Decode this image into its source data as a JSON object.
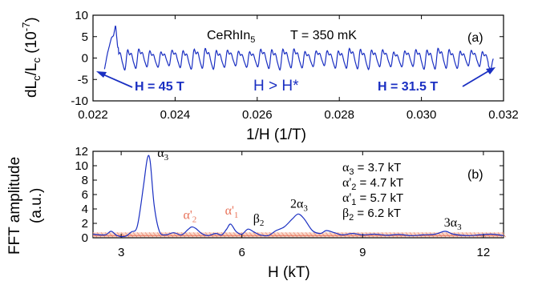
{
  "chart_data": [
    {
      "panel": "(a)",
      "type": "line",
      "xlabel": "1/H (1/T)",
      "ylabel": "dL_c/L_c (10^-7)",
      "xlim": [
        0.022,
        0.032
      ],
      "ylim": [
        -10,
        10
      ],
      "x_ticks": [
        "0.022",
        "0.024",
        "0.026",
        "0.028",
        "0.030",
        "0.032"
      ],
      "y_ticks": [
        "10",
        "5",
        "0",
        "-5",
        "-10"
      ],
      "annotations": {
        "sample": "CeRhIn",
        "sample_sub": "5",
        "temperature": "T = 350 mK",
        "panel_label": "(a)",
        "h_high": "H = 45 T",
        "h_low": "H = 31.5 T",
        "regime": "H > H*"
      },
      "series": [
        {
          "color": "#1a2fc2",
          "x_range": [
            0.02228,
            0.03175
          ],
          "oscillation_period_invT": 0.00027,
          "amplitude": 2.0,
          "values": [
            [
              0.02228,
              -2.6
            ],
            [
              0.02235,
              1.0
            ],
            [
              0.02245,
              4.8
            ],
            [
              0.0225,
              5.2
            ],
            [
              0.02255,
              7.8
            ],
            [
              0.0226,
              2.5
            ],
            [
              0.0228,
              1.5
            ],
            [
              0.023,
              -1.8
            ],
            [
              0.0233,
              2.0
            ],
            [
              0.0236,
              -1.5
            ],
            [
              0.024,
              1.8
            ],
            [
              0.0245,
              -1.6
            ],
            [
              0.025,
              2.0
            ],
            [
              0.0255,
              -1.7
            ],
            [
              0.026,
              1.9
            ],
            [
              0.0265,
              -1.5
            ],
            [
              0.027,
              2.1
            ],
            [
              0.0275,
              -1.6
            ],
            [
              0.028,
              1.8
            ],
            [
              0.0285,
              -1.7
            ],
            [
              0.029,
              2.0
            ],
            [
              0.0295,
              -1.6
            ],
            [
              0.03,
              1.9
            ],
            [
              0.0305,
              -1.8
            ],
            [
              0.031,
              2.0
            ],
            [
              0.0315,
              -1.5
            ],
            [
              0.03175,
              -1.9
            ]
          ]
        }
      ]
    },
    {
      "panel": "(b)",
      "type": "line",
      "xlabel": "H (kT)",
      "ylabel": "FFT amplitude (a.u.)",
      "xlim": [
        2.3,
        12.5
      ],
      "ylim": [
        0,
        12
      ],
      "x_ticks": [
        "3",
        "6",
        "9",
        "12"
      ],
      "y_ticks": [
        "12",
        "10",
        "8",
        "6",
        "4",
        "2",
        "0"
      ],
      "panel_label": "(b)",
      "peaks": [
        {
          "label": "α",
          "sub": "3",
          "x": 3.7,
          "y": 11.0,
          "color": "#000000"
        },
        {
          "label": "α'",
          "sub": "2",
          "x": 4.7,
          "y": 1.5,
          "color": "#e8735a"
        },
        {
          "label": "α'",
          "sub": "1",
          "x": 5.7,
          "y": 1.9,
          "color": "#e8735a"
        },
        {
          "label": "β",
          "sub": "2",
          "x": 6.2,
          "y": 1.2,
          "color": "#000000"
        },
        {
          "label": "2α",
          "sub": "3",
          "x": 7.4,
          "y": 3.3,
          "color": "#000000"
        },
        {
          "label": "3α",
          "sub": "3",
          "x": 11.1,
          "y": 0.9,
          "color": "#000000"
        }
      ],
      "frequency_list": [
        {
          "label": "α",
          "sub": "3",
          "value": " = 3.7 kT"
        },
        {
          "label": "α'",
          "sub": "2",
          "value": " = 4.7 kT"
        },
        {
          "label": "α'",
          "sub": "1",
          "value": " = 5.7 kT"
        },
        {
          "label": "β",
          "sub": "2",
          "value": " = 6.2 kT"
        }
      ],
      "series": [
        {
          "color": "#1a2fc2",
          "values": [
            [
              2.3,
              0.5
            ],
            [
              2.6,
              0.4
            ],
            [
              2.75,
              0.9
            ],
            [
              2.9,
              0.3
            ],
            [
              3.1,
              0.2
            ],
            [
              3.25,
              0.8
            ],
            [
              3.4,
              1.6
            ],
            [
              3.55,
              7.0
            ],
            [
              3.65,
              11.0
            ],
            [
              3.72,
              10.6
            ],
            [
              3.82,
              4.5
            ],
            [
              3.95,
              0.9
            ],
            [
              4.1,
              0.4
            ],
            [
              4.3,
              0.7
            ],
            [
              4.5,
              0.4
            ],
            [
              4.65,
              1.1
            ],
            [
              4.75,
              1.5
            ],
            [
              4.85,
              1.3
            ],
            [
              5.0,
              0.6
            ],
            [
              5.15,
              0.3
            ],
            [
              5.35,
              0.6
            ],
            [
              5.5,
              0.4
            ],
            [
              5.62,
              1.2
            ],
            [
              5.72,
              1.9
            ],
            [
              5.85,
              0.9
            ],
            [
              6.0,
              0.5
            ],
            [
              6.15,
              1.2
            ],
            [
              6.3,
              0.8
            ],
            [
              6.45,
              0.4
            ],
            [
              6.65,
              0.3
            ],
            [
              6.85,
              1.0
            ],
            [
              7.05,
              1.5
            ],
            [
              7.25,
              2.6
            ],
            [
              7.4,
              3.3
            ],
            [
              7.55,
              2.6
            ],
            [
              7.75,
              1.0
            ],
            [
              7.95,
              0.6
            ],
            [
              8.1,
              1.0
            ],
            [
              8.3,
              0.7
            ],
            [
              8.5,
              0.4
            ],
            [
              8.75,
              0.6
            ],
            [
              9.0,
              0.4
            ],
            [
              9.3,
              0.5
            ],
            [
              9.6,
              0.35
            ],
            [
              9.9,
              0.45
            ],
            [
              10.2,
              0.3
            ],
            [
              10.5,
              0.4
            ],
            [
              10.8,
              0.5
            ],
            [
              11.05,
              0.9
            ],
            [
              11.25,
              0.5
            ],
            [
              11.6,
              0.3
            ],
            [
              11.9,
              0.4
            ],
            [
              12.2,
              0.5
            ],
            [
              12.5,
              0.3
            ]
          ]
        },
        {
          "color": "#e8735a",
          "style": "noise floor",
          "values": [
            [
              2.3,
              0.3
            ],
            [
              12.5,
              0.3
            ]
          ]
        }
      ]
    }
  ]
}
